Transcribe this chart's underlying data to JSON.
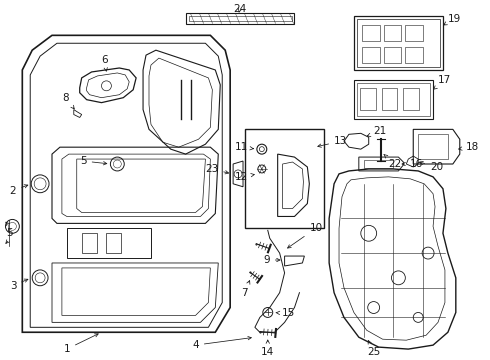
{
  "background_color": "#ffffff",
  "line_color": "#1a1a1a",
  "figsize": [
    4.9,
    3.6
  ],
  "dpi": 100
}
